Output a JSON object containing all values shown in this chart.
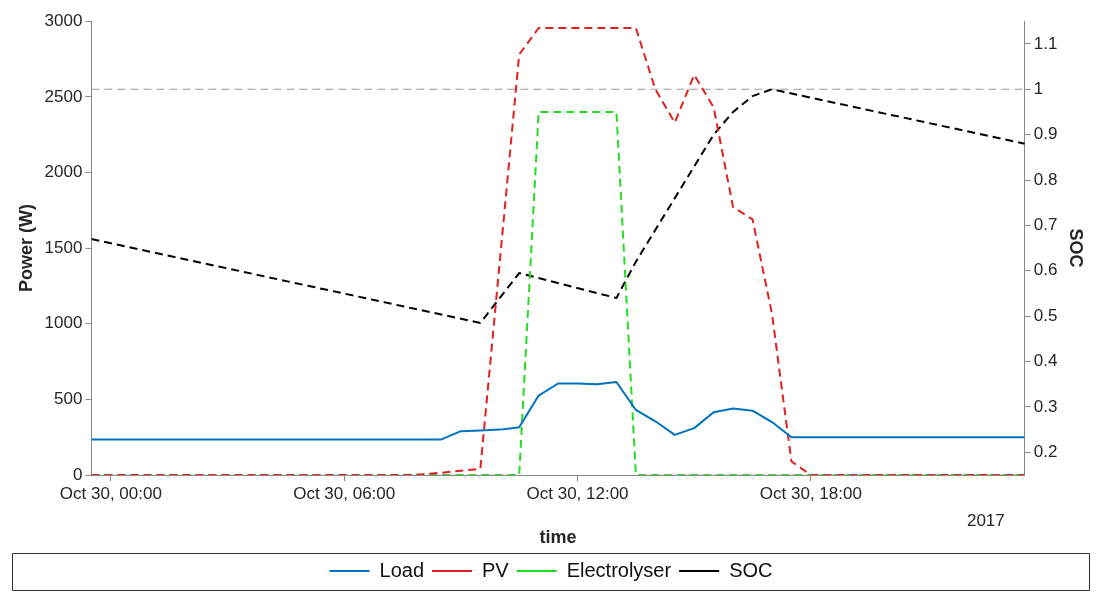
{
  "chart_data": {
    "type": "line",
    "xlabel": "time",
    "ylabel": "Power (W)",
    "y2label": "SOC",
    "xlim": [
      "2017-10-29T23:30",
      "2017-10-30T23:30"
    ],
    "xticks": [
      {
        "value": "2017-10-30T00:00",
        "label": "Oct 30, 00:00"
      },
      {
        "value": "2017-10-30T06:00",
        "label": "Oct 30, 06:00"
      },
      {
        "value": "2017-10-30T12:00",
        "label": "Oct 30, 12:00"
      },
      {
        "value": "2017-10-30T18:00",
        "label": "Oct 30, 18:00"
      }
    ],
    "ylim": [
      0,
      3000
    ],
    "yticks": [
      0,
      500,
      1000,
      1500,
      2000,
      2500,
      3000
    ],
    "y2lim": [
      0.15,
      1.15
    ],
    "y2ticks": [
      0.2,
      0.3,
      0.4,
      0.5,
      0.6,
      0.7,
      0.8,
      0.9,
      1,
      1.1
    ],
    "grid": false,
    "legend": "bottom",
    "marker": "none",
    "annotations": [
      "2017"
    ],
    "ref_lines": [
      {
        "axis": "y2",
        "value": 1,
        "color": "#999999",
        "line_style": "dashed"
      }
    ],
    "series": [
      {
        "name": "Load",
        "color": "#0072bd",
        "line_style": "solid",
        "x": [
          "2017-10-29T23:30",
          "2017-10-30T08:30",
          "2017-10-30T09:00",
          "2017-10-30T09:30",
          "2017-10-30T10:00",
          "2017-10-30T10:30",
          "2017-10-30T11:00",
          "2017-10-30T11:30",
          "2017-10-30T12:00",
          "2017-10-30T12:30",
          "2017-10-30T13:00",
          "2017-10-30T13:30",
          "2017-10-30T14:00",
          "2017-10-30T14:30",
          "2017-10-30T15:00",
          "2017-10-30T15:30",
          "2017-10-30T16:00",
          "2017-10-30T16:30",
          "2017-10-30T17:00",
          "2017-10-30T17:30",
          "2017-10-30T23:30"
        ],
        "values": [
          235,
          235,
          290,
          295,
          300,
          315,
          525,
          605,
          605,
          600,
          615,
          430,
          355,
          265,
          310,
          415,
          440,
          425,
          350,
          250,
          250
        ]
      },
      {
        "name": "PV",
        "color": "#e02020",
        "line_style": "dashed",
        "x": [
          "2017-10-29T23:30",
          "2017-10-30T07:30",
          "2017-10-30T08:00",
          "2017-10-30T08:30",
          "2017-10-30T09:00",
          "2017-10-30T09:30",
          "2017-10-30T10:30",
          "2017-10-30T11:00",
          "2017-10-30T13:30",
          "2017-10-30T14:00",
          "2017-10-30T14:30",
          "2017-10-30T15:00",
          "2017-10-30T15:30",
          "2017-10-30T16:00",
          "2017-10-30T16:30",
          "2017-10-30T17:00",
          "2017-10-30T17:30",
          "2017-10-30T18:00",
          "2017-10-30T23:30"
        ],
        "values": [
          0,
          0,
          5,
          15,
          28,
          40,
          2780,
          2955,
          2955,
          2550,
          2330,
          2645,
          2430,
          1770,
          1690,
          1065,
          90,
          0,
          0
        ]
      },
      {
        "name": "Electrolyser",
        "color": "#22dd22",
        "line_style": "dashed",
        "x": [
          "2017-10-29T23:30",
          "2017-10-30T10:30",
          "2017-10-30T11:00",
          "2017-10-30T13:00",
          "2017-10-30T13:30",
          "2017-10-30T23:30"
        ],
        "values": [
          0,
          0,
          2400,
          2400,
          0,
          0
        ]
      },
      {
        "name": "SOC",
        "color": "#000000",
        "line_style": "dashed",
        "axis": "y2",
        "x": [
          "2017-10-29T23:30",
          "2017-10-30T09:30",
          "2017-10-30T10:30",
          "2017-10-30T13:00",
          "2017-10-30T13:30",
          "2017-10-30T15:30",
          "2017-10-30T16:00",
          "2017-10-30T16:30",
          "2017-10-30T17:00",
          "2017-10-30T23:30"
        ],
        "values": [
          0.67,
          0.485,
          0.595,
          0.54,
          0.62,
          0.9,
          0.95,
          0.985,
          1.0,
          0.88
        ]
      }
    ]
  }
}
